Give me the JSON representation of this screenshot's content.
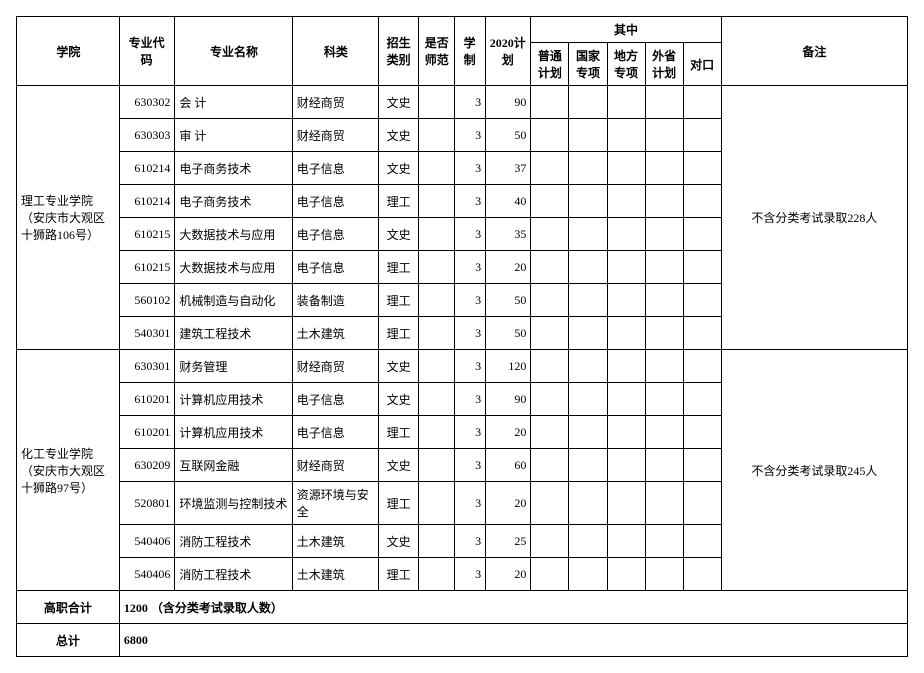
{
  "header": {
    "college": "学院",
    "code": "专业代码",
    "major": "专业名称",
    "kind": "科类",
    "zstype": "招生类别",
    "normal": "是否师范",
    "dur": "学制",
    "plan": "2020计划",
    "sub_group": "其中",
    "subs": [
      "普通计划",
      "国家专项",
      "地方专项",
      "外省计划",
      "对口"
    ],
    "remark": "备注"
  },
  "colleges": [
    {
      "name": "理工专业学院（安庆市大观区十狮路106号）",
      "remark": "不含分类考试录取228人",
      "rows": [
        {
          "code": "630302",
          "major": "会  计",
          "kind": "财经商贸",
          "zstype": "文史",
          "dur": 3,
          "plan": 90
        },
        {
          "code": "630303",
          "major": "审  计",
          "kind": "财经商贸",
          "zstype": "文史",
          "dur": 3,
          "plan": 50
        },
        {
          "code": "610214",
          "major": "电子商务技术",
          "kind": "电子信息",
          "zstype": "文史",
          "dur": 3,
          "plan": 37
        },
        {
          "code": "610214",
          "major": "电子商务技术",
          "kind": "电子信息",
          "zstype": "理工",
          "dur": 3,
          "plan": 40
        },
        {
          "code": "610215",
          "major": "大数据技术与应用",
          "kind": "电子信息",
          "zstype": "文史",
          "dur": 3,
          "plan": 35
        },
        {
          "code": "610215",
          "major": "大数据技术与应用",
          "kind": "电子信息",
          "zstype": "理工",
          "dur": 3,
          "plan": 20
        },
        {
          "code": "560102",
          "major": "机械制造与自动化",
          "kind": "装备制造",
          "zstype": "理工",
          "dur": 3,
          "plan": 50
        },
        {
          "code": "540301",
          "major": "建筑工程技术",
          "kind": "土木建筑",
          "zstype": "理工",
          "dur": 3,
          "plan": 50
        }
      ]
    },
    {
      "name": "化工专业学院（安庆市大观区十狮路97号）",
      "remark": "不含分类考试录取245人",
      "rows": [
        {
          "code": "630301",
          "major": "财务管理",
          "kind": "财经商贸",
          "zstype": "文史",
          "dur": 3,
          "plan": 120
        },
        {
          "code": "610201",
          "major": "计算机应用技术",
          "kind": "电子信息",
          "zstype": "文史",
          "dur": 3,
          "plan": 90
        },
        {
          "code": "610201",
          "major": "计算机应用技术",
          "kind": "电子信息",
          "zstype": "理工",
          "dur": 3,
          "plan": 20
        },
        {
          "code": "630209",
          "major": "互联网金融",
          "kind": "财经商贸",
          "zstype": "文史",
          "dur": 3,
          "plan": 60
        },
        {
          "code": "520801",
          "major": "环境监测与控制技术",
          "kind": "资源环境与安全",
          "zstype": "理工",
          "dur": 3,
          "plan": 20
        },
        {
          "code": "540406",
          "major": "消防工程技术",
          "kind": "土木建筑",
          "zstype": "文史",
          "dur": 3,
          "plan": 25
        },
        {
          "code": "540406",
          "major": "消防工程技术",
          "kind": "土木建筑",
          "zstype": "理工",
          "dur": 3,
          "plan": 20
        }
      ]
    }
  ],
  "totals": {
    "hz_label": "高职合计",
    "hz_value": "1200  （含分类考试录取人数）",
    "total_label": "总计",
    "total_value": "6800"
  }
}
